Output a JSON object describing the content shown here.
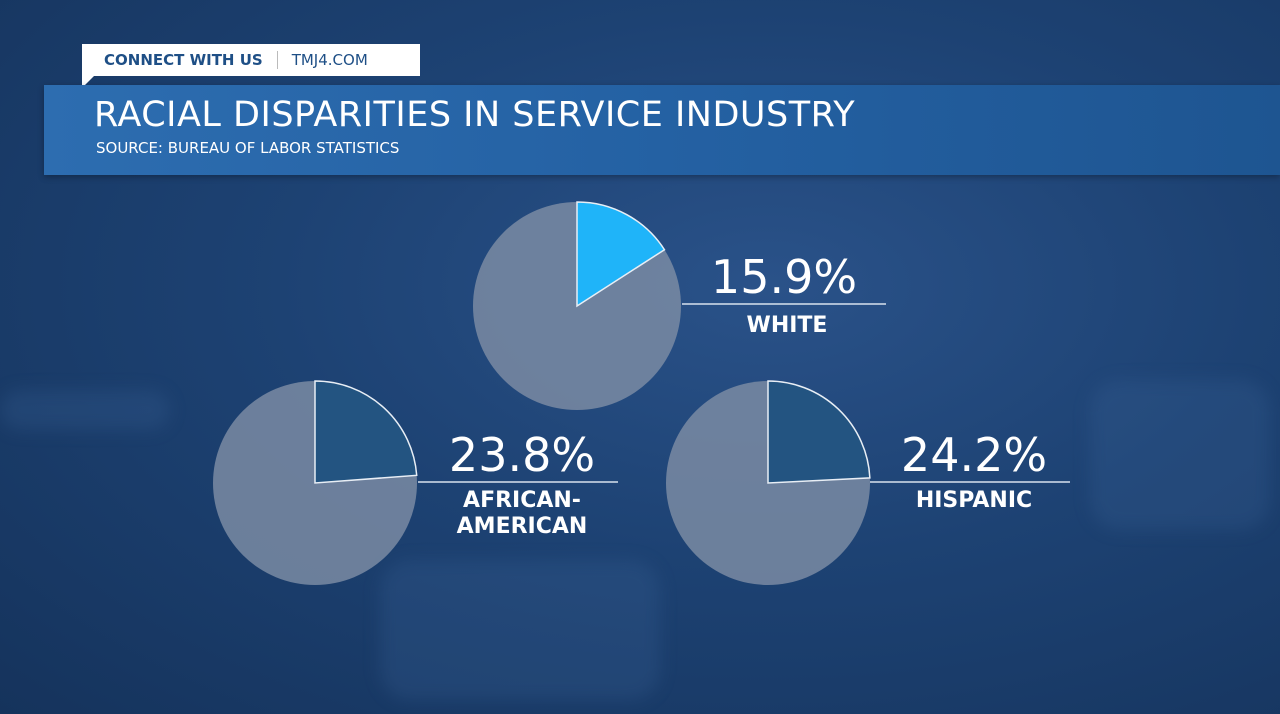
{
  "banner": {
    "connect_label": "CONNECT WITH US",
    "site": "TMJ4.COM"
  },
  "header": {
    "title": "RACIAL DISPARITIES IN SERVICE INDUSTRY",
    "source": "SOURCE: BUREAU OF LABOR STATISTICS"
  },
  "chart_data": [
    {
      "type": "pie",
      "category": "WHITE",
      "value_label": "15.9%",
      "values": [
        15.9,
        84.1
      ],
      "colors": [
        "#1fb4f9",
        "#7a8ba3"
      ]
    },
    {
      "type": "pie",
      "category": "AFRICAN-AMERICAN",
      "category_lines": [
        "AFRICAN-",
        "AMERICAN"
      ],
      "value_label": "23.8%",
      "values": [
        23.8,
        76.2
      ],
      "colors": [
        "#235481",
        "#7a8ba3"
      ]
    },
    {
      "type": "pie",
      "category": "HISPANIC",
      "value_label": "24.2%",
      "values": [
        24.2,
        75.8
      ],
      "colors": [
        "#235481",
        "#7a8ba3"
      ]
    }
  ]
}
